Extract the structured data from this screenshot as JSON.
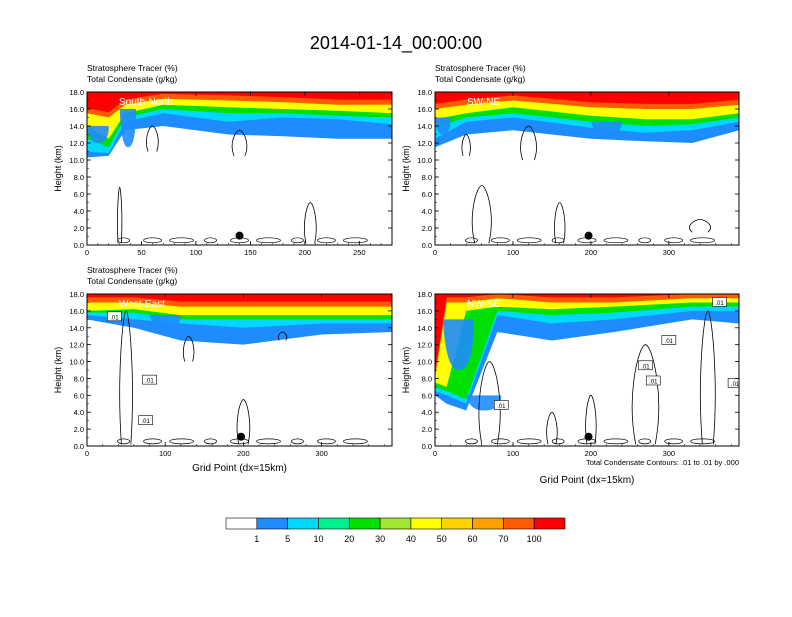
{
  "figure_title": "2014-01-14_00:00:00",
  "colors": {
    "tracer": [
      "#ffffff",
      "#1e8cff",
      "#00d8ff",
      "#00f090",
      "#00e000",
      "#a0e632",
      "#ffff00",
      "#ffd200",
      "#ffa000",
      "#ff5a00",
      "#ff0000"
    ]
  },
  "colorbar": {
    "labels": [
      "1",
      "5",
      "10",
      "20",
      "30",
      "40",
      "50",
      "60",
      "70",
      "100"
    ]
  },
  "chart_data": [
    {
      "type": "heatmap",
      "title_left_1": "Stratosphere Tracer   (%)",
      "title_left_2": "Total Condensate   (g/kg)",
      "inset_label": "South-North",
      "ylabel": "Height (km)",
      "xlabel": "",
      "ylim": [
        0,
        18
      ],
      "xlim": [
        0,
        280
      ],
      "x_ticks": [
        0,
        50,
        100,
        150,
        200,
        250
      ],
      "y_ticks": [
        0.0,
        2.0,
        4.0,
        6.0,
        8.0,
        10.0,
        12.0,
        14.0,
        16.0,
        18.0
      ],
      "marker": {
        "x": 140,
        "y": 1.1
      },
      "footnote": "",
      "contour_labels": [],
      "tracer_front": [
        {
          "x": 0,
          "bands": [
            15.5,
            14.0,
            12.5,
            11.0,
            10.3
          ]
        },
        {
          "x": 20,
          "bands": [
            15.0,
            12.5,
            11.5,
            10.8,
            10.5
          ]
        },
        {
          "x": 35,
          "bands": [
            16.5,
            15.5,
            15.0,
            14.5,
            13.5
          ]
        },
        {
          "x": 70,
          "bands": [
            17.2,
            16.5,
            16.0,
            15.5,
            14.0
          ]
        },
        {
          "x": 130,
          "bands": [
            17.0,
            16.2,
            15.5,
            14.5,
            13.0
          ]
        },
        {
          "x": 180,
          "bands": [
            16.8,
            16.0,
            15.5,
            15.0,
            12.8
          ]
        },
        {
          "x": 230,
          "bands": [
            16.5,
            15.8,
            15.2,
            14.8,
            12.5
          ]
        },
        {
          "x": 280,
          "bands": [
            16.5,
            15.5,
            15.0,
            14.2,
            12.5
          ]
        }
      ]
    },
    {
      "type": "heatmap",
      "title_left_1": "Stratosphere Tracer   (%)",
      "title_left_2": "Total Condensate   (g/kg)",
      "inset_label": "SW-NE",
      "ylabel": "Height (km)",
      "xlabel": "",
      "ylim": [
        0,
        18
      ],
      "xlim": [
        0,
        390
      ],
      "x_ticks": [
        0,
        100,
        200,
        300
      ],
      "y_ticks": [
        0.0,
        2.0,
        4.0,
        6.0,
        8.0,
        10.0,
        12.0,
        14.0,
        16.0,
        18.0
      ],
      "marker": {
        "x": 197,
        "y": 1.1
      },
      "footnote": "",
      "contour_labels": [],
      "tracer_front": [
        {
          "x": 0,
          "bands": [
            16.0,
            14.8,
            13.8,
            12.5,
            11.5
          ]
        },
        {
          "x": 40,
          "bands": [
            16.5,
            15.5,
            15.0,
            14.5,
            13.0
          ]
        },
        {
          "x": 100,
          "bands": [
            17.0,
            16.2,
            15.5,
            15.0,
            13.5
          ]
        },
        {
          "x": 200,
          "bands": [
            16.2,
            15.2,
            14.5,
            13.8,
            12.5
          ]
        },
        {
          "x": 270,
          "bands": [
            16.0,
            14.8,
            14.0,
            13.2,
            12.2
          ]
        },
        {
          "x": 330,
          "bands": [
            16.0,
            14.8,
            14.2,
            13.5,
            12.0
          ]
        },
        {
          "x": 390,
          "bands": [
            16.5,
            15.5,
            15.0,
            14.5,
            13.5
          ]
        }
      ]
    },
    {
      "type": "heatmap",
      "title_left_1": "Stratosphere Tracer   (%)",
      "title_left_2": "Total Condensate   (g/kg)",
      "inset_label": "West-East",
      "ylabel": "Height (km)",
      "xlabel": "Grid Point (dx=15km)",
      "ylim": [
        0,
        18
      ],
      "xlim": [
        0,
        390
      ],
      "x_ticks": [
        0,
        100,
        200,
        300
      ],
      "y_ticks": [
        0.0,
        2.0,
        4.0,
        6.0,
        8.0,
        10.0,
        12.0,
        14.0,
        16.0,
        18.0
      ],
      "marker": {
        "x": 197,
        "y": 1.1
      },
      "footnote": "",
      "contour_labels": [
        {
          "text": ".01",
          "x": 80,
          "y": 7.8
        },
        {
          "text": ".01",
          "x": 75,
          "y": 3.0
        },
        {
          "text": ".01",
          "x": 35,
          "y": 15.3
        }
      ],
      "tracer_front": [
        {
          "x": 0,
          "bands": [
            17.0,
            16.0,
            15.8,
            15.5,
            15.0
          ]
        },
        {
          "x": 60,
          "bands": [
            17.0,
            16.2,
            15.8,
            15.0,
            14.0
          ]
        },
        {
          "x": 120,
          "bands": [
            16.5,
            15.5,
            15.0,
            14.5,
            12.5
          ]
        },
        {
          "x": 200,
          "bands": [
            16.5,
            15.5,
            15.0,
            14.0,
            12.0
          ]
        },
        {
          "x": 300,
          "bands": [
            16.5,
            15.5,
            15.0,
            14.5,
            13.2
          ]
        },
        {
          "x": 390,
          "bands": [
            16.5,
            15.5,
            15.0,
            14.5,
            13.5
          ]
        }
      ]
    },
    {
      "type": "heatmap",
      "title_left_1": "",
      "title_left_2": "",
      "inset_label": "NW-SE",
      "ylabel": "Height (km)",
      "xlabel": "Grid Point (dx=15km)",
      "ylim": [
        0,
        18
      ],
      "xlim": [
        0,
        390
      ],
      "x_ticks": [
        0,
        100,
        200,
        300
      ],
      "y_ticks": [
        0.0,
        2.0,
        4.0,
        6.0,
        8.0,
        10.0,
        12.0,
        14.0,
        16.0,
        18.0
      ],
      "marker": {
        "x": 197,
        "y": 1.1
      },
      "footnote": "Total Condensate Contours: .01 to .01 by .000",
      "contour_labels": [
        {
          "text": ".01",
          "x": 85,
          "y": 4.8
        },
        {
          "text": ".01",
          "x": 270,
          "y": 9.5
        },
        {
          "text": ".01",
          "x": 280,
          "y": 7.7
        },
        {
          "text": ".01",
          "x": 365,
          "y": 17.0
        },
        {
          "text": ".01",
          "x": 385,
          "y": 7.4
        },
        {
          "text": ".01",
          "x": 300,
          "y": 12.5
        }
      ],
      "tracer_front": [
        {
          "x": 0,
          "bands": [
            8.0,
            7.5,
            7.0,
            6.5,
            6.0
          ]
        },
        {
          "x": 15,
          "bands": [
            17.0,
            7.0,
            6.5,
            6.0,
            5.0
          ]
        },
        {
          "x": 40,
          "bands": [
            17.0,
            16.0,
            5.5,
            5.0,
            4.2
          ]
        },
        {
          "x": 80,
          "bands": [
            17.5,
            16.5,
            16.0,
            15.5,
            13.5
          ]
        },
        {
          "x": 150,
          "bands": [
            17.0,
            16.2,
            15.5,
            14.5,
            12.5
          ]
        },
        {
          "x": 230,
          "bands": [
            17.0,
            16.5,
            15.8,
            15.0,
            13.5
          ]
        },
        {
          "x": 330,
          "bands": [
            17.5,
            17.0,
            16.5,
            16.0,
            15.0
          ]
        },
        {
          "x": 390,
          "bands": [
            17.5,
            17.0,
            16.5,
            16.0,
            14.5
          ]
        }
      ]
    }
  ]
}
